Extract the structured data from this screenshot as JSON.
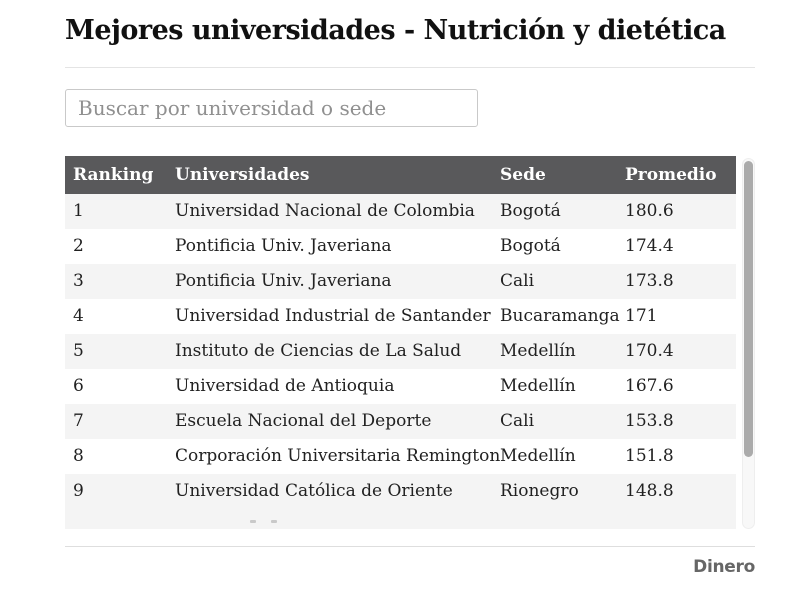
{
  "header": {
    "title": "Mejores universidades - Nutrición y dietética"
  },
  "search": {
    "placeholder": "Buscar por universidad o sede",
    "value": ""
  },
  "table": {
    "columns": {
      "ranking": "Ranking",
      "universidad": "Universidades",
      "sede": "Sede",
      "promedio": "Promedio"
    },
    "rows": [
      {
        "ranking": "1",
        "universidad": "Universidad Nacional de Colombia",
        "sede": "Bogotá",
        "promedio": "180.6"
      },
      {
        "ranking": "2",
        "universidad": "Pontificia Univ. Javeriana",
        "sede": "Bogotá",
        "promedio": "174.4"
      },
      {
        "ranking": "3",
        "universidad": "Pontificia Univ. Javeriana",
        "sede": "Cali",
        "promedio": "173.8"
      },
      {
        "ranking": "4",
        "universidad": "Universidad Industrial de Santander",
        "sede": "Bucaramanga",
        "promedio": "171"
      },
      {
        "ranking": "5",
        "universidad": "Instituto de Ciencias de La Salud",
        "sede": "Medellín",
        "promedio": "170.4"
      },
      {
        "ranking": "6",
        "universidad": "Universidad de Antioquia",
        "sede": "Medellín",
        "promedio": "167.6"
      },
      {
        "ranking": "7",
        "universidad": "Escuela Nacional del Deporte",
        "sede": "Cali",
        "promedio": "153.8"
      },
      {
        "ranking": "8",
        "universidad": "Corporación Universitaria Remington",
        "sede": "Medellín",
        "promedio": "151.8"
      },
      {
        "ranking": "9",
        "universidad": "Universidad Católica de Oriente",
        "sede": "Rionegro",
        "promedio": "148.8"
      }
    ],
    "partial_row_visible": true
  },
  "footer": {
    "brand": "Dinero"
  },
  "colors": {
    "table_header_bg": "#59595b",
    "table_header_text": "#ffffff",
    "row_stripe": "#f4f4f4",
    "body_text": "#212121",
    "title_text": "#111111",
    "brand_text": "#666666"
  }
}
